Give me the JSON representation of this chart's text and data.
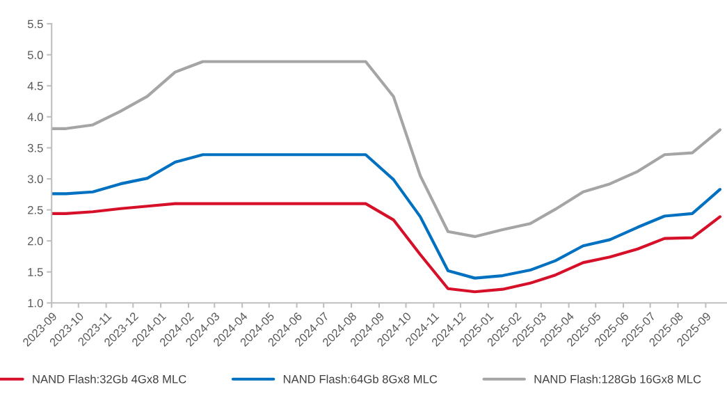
{
  "chart_data": {
    "type": "line",
    "x": [
      "2023-09-01",
      "2023-09-17",
      "2023-10-17",
      "2023-11-17",
      "2023-12-17",
      "2024-01-17",
      "2024-02-17",
      "2024-03-17",
      "2024-04-17",
      "2024-05-17",
      "2024-06-17",
      "2024-07-17",
      "2024-08-17",
      "2024-09-17",
      "2024-10-17",
      "2024-11-17",
      "2024-12-17",
      "2025-01-17",
      "2025-02-17",
      "2025-03-17",
      "2025-04-17",
      "2025-05-17",
      "2025-06-17",
      "2025-07-17",
      "2025-08-17",
      "2025-09-17"
    ],
    "series": [
      {
        "name": "NAND Flash:32Gb 4Gx8 MLC",
        "color": "#d7102a",
        "values": [
          2.44,
          2.44,
          2.47,
          2.52,
          2.56,
          2.6,
          2.6,
          2.6,
          2.6,
          2.6,
          2.6,
          2.6,
          2.6,
          2.34,
          1.78,
          1.23,
          1.18,
          1.22,
          1.32,
          1.45,
          1.65,
          1.74,
          1.87,
          2.04,
          2.05,
          2.39
        ]
      },
      {
        "name": "NAND Flash:64Gb 8Gx8 MLC",
        "color": "#0070c0",
        "values": [
          2.76,
          2.76,
          2.79,
          2.92,
          3.01,
          3.27,
          3.39,
          3.39,
          3.39,
          3.39,
          3.39,
          3.39,
          3.39,
          2.99,
          2.39,
          1.52,
          1.4,
          1.44,
          1.53,
          1.68,
          1.92,
          2.02,
          2.22,
          2.4,
          2.44,
          2.83
        ]
      },
      {
        "name": "NAND Flash:128Gb 16Gx8 MLC",
        "color": "#a5a5a5",
        "values": [
          3.81,
          3.81,
          3.87,
          4.09,
          4.33,
          4.72,
          4.89,
          4.89,
          4.89,
          4.89,
          4.89,
          4.89,
          4.89,
          4.33,
          3.05,
          2.15,
          2.07,
          2.18,
          2.28,
          2.51,
          2.79,
          2.92,
          3.12,
          3.39,
          3.42,
          3.79
        ]
      }
    ],
    "xlim": [
      "2023-09-01",
      "2025-09-24"
    ],
    "xticks": [
      "2023-09",
      "2023-10",
      "2023-11",
      "2023-12",
      "2024-01",
      "2024-02",
      "2024-03",
      "2024-04",
      "2024-05",
      "2024-06",
      "2024-07",
      "2024-08",
      "2024-09",
      "2024-10",
      "2024-11",
      "2024-12",
      "2025-01",
      "2025-02",
      "2025-03",
      "2025-04",
      "2025-05",
      "2025-06",
      "2025-07",
      "2025-08",
      "2025-09"
    ],
    "ylim": [
      1.0,
      5.5
    ],
    "yticks": [
      {
        "value": 1.0,
        "label": "1.0"
      },
      {
        "value": 1.5,
        "label": "1.5"
      },
      {
        "value": 2.0,
        "label": "2.0"
      },
      {
        "value": 2.5,
        "label": "2.5"
      },
      {
        "value": 3.0,
        "label": "3.0"
      },
      {
        "value": 3.5,
        "label": "3.5"
      },
      {
        "value": 4.0,
        "label": "4.0"
      },
      {
        "value": 4.5,
        "label": "4.5"
      },
      {
        "value": 5.0,
        "label": "5.0"
      },
      {
        "value": 5.5,
        "label": "5.5"
      }
    ],
    "grid": false,
    "legend": "bottom",
    "marker": "none",
    "line_style": "solid"
  }
}
